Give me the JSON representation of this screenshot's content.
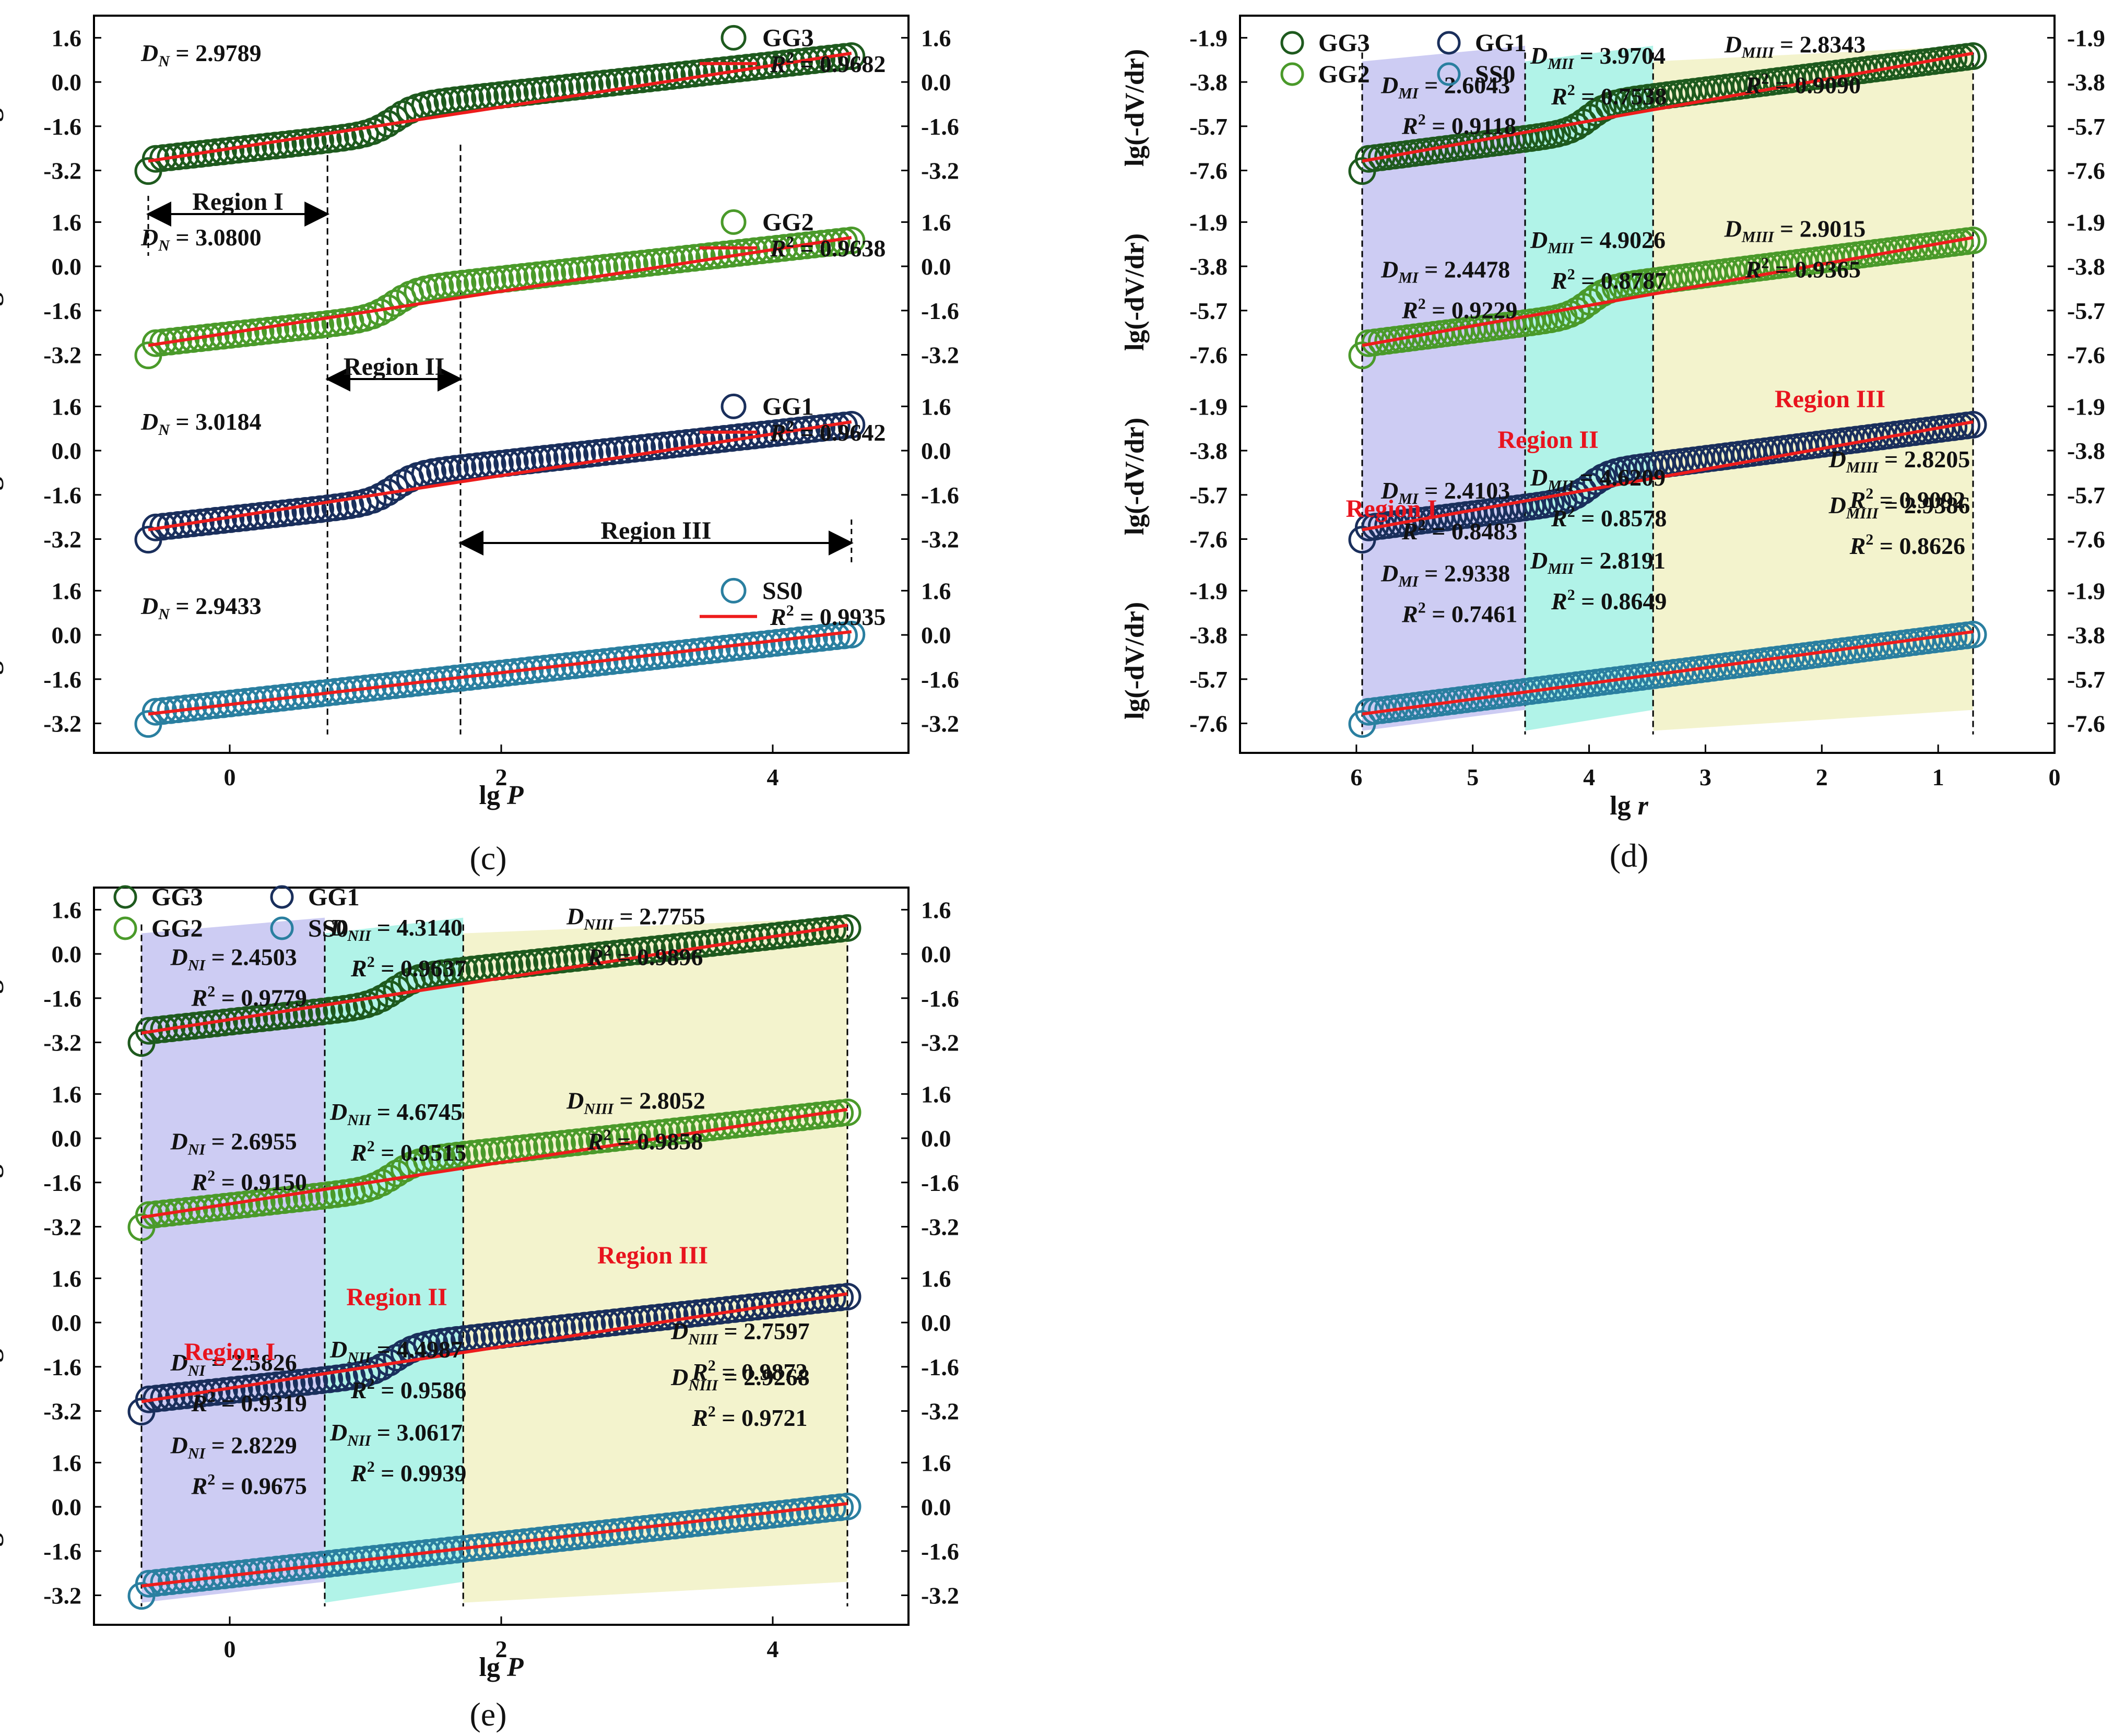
{
  "colors": {
    "GG3": "#1e5a1e",
    "GG2": "#4a9a2a",
    "GG1": "#1a2f5c",
    "SS0": "#2a7fa0",
    "fit": "#ee1c1c",
    "regionI": "#c8c6f2",
    "regionII": "#a8f2e6",
    "regionIII": "#f2f2c8",
    "regionLabel": "#e8141e"
  },
  "chart_data": [
    {
      "id": "c",
      "caption": "(c)",
      "type": "scatter",
      "xlabel": "lg P",
      "ylabel": "lg S",
      "xlim": [
        -1,
        5
      ],
      "xticks": [
        "0",
        "2",
        "4"
      ],
      "yticks": [
        "1.6",
        "0.0",
        "-1.6",
        "-3.2"
      ],
      "series": [
        {
          "name": "GG3",
          "fit_label": "R2 = 0.9682",
          "annotation": "D_N = 2.9789"
        },
        {
          "name": "GG2",
          "fit_label": "R2 = 0.9638",
          "annotation": "D_N = 3.0800"
        },
        {
          "name": "GG1",
          "fit_label": "R2 = 0.9642",
          "annotation": "D_N = 3.0184"
        },
        {
          "name": "SS0",
          "fit_label": "R2 = 0.9935",
          "annotation": "D_N = 2.9433"
        }
      ],
      "regions": [
        "Region I",
        "Region II",
        "Region III"
      ],
      "region_bounds_x": [
        -0.6,
        0.72,
        1.7,
        4.58
      ]
    },
    {
      "id": "d",
      "caption": "(d)",
      "type": "scatter",
      "xlabel": "lg r",
      "ylabel": "lg(-dV/dr)",
      "xlim": [
        7,
        0
      ],
      "xticks": [
        "6",
        "5",
        "4",
        "3",
        "2",
        "1",
        "0"
      ],
      "yticks": [
        "-1.9",
        "-3.8",
        "-5.7",
        "-7.6"
      ],
      "legend": [
        "GG3",
        "GG1",
        "GG2",
        "SS0"
      ],
      "regions": [
        "Region I",
        "Region II",
        "Region III"
      ],
      "region_bounds_x": [
        5.95,
        4.55,
        3.45,
        0.7
      ],
      "annotations": {
        "GG3": [
          "D_MI = 2.6043",
          "R2 = 0.9118",
          "D_MII = 3.9704",
          "R2 = 0.7538",
          "D_MIII = 2.8343",
          "R2 = 0.9090"
        ],
        "GG2": [
          "D_MI = 2.4478",
          "R2 = 0.9229",
          "D_MII = 4.9026",
          "R2 = 0.8787",
          "D_MIII = 2.9015",
          "R2 = 0.9365"
        ],
        "GG1": [
          "D_MI = 2.4103",
          "R2 = 0.8483",
          "D_MII = 4.6209",
          "R2 = 0.8578",
          "D_MIII = 2.8205",
          "R2 = 0.9092"
        ],
        "SS0": [
          "D_MI = 2.9338",
          "R2 = 0.7461",
          "D_MII = 2.8191",
          "R2 = 0.8649",
          "D_MIII = 2.9386",
          "R2 = 0.8626"
        ]
      }
    },
    {
      "id": "e",
      "caption": "(e)",
      "type": "scatter",
      "xlabel": "lg P",
      "ylabel": "lg S",
      "xlim": [
        -1,
        5
      ],
      "xticks": [
        "0",
        "2",
        "4"
      ],
      "yticks": [
        "1.6",
        "0.0",
        "-1.6",
        "-3.2"
      ],
      "legend": [
        "GG3",
        "GG1",
        "GG2",
        "SS0"
      ],
      "regions": [
        "Region I",
        "Region II",
        "Region III"
      ],
      "region_bounds_x": [
        -0.65,
        0.7,
        1.72,
        4.55
      ],
      "annotations": {
        "GG3": [
          "D_NI = 2.4503",
          "R2 = 0.9779",
          "D_NII = 4.3140",
          "R2 = 0.9637",
          "D_NIII = 2.7755",
          "R2 = 0.9896"
        ],
        "GG2": [
          "D_NI = 2.6955",
          "R2 = 0.9150",
          "D_NII = 4.6745",
          "R2 = 0.9515",
          "D_NIII = 2.8052",
          "R2 = 0.9858"
        ],
        "GG1": [
          "D_NI = 2.5826",
          "R2 = 0.9319",
          "D_NII = 4.4987",
          "R2 = 0.9586",
          "D_NIII = 2.7597",
          "R2 = 0.9872"
        ],
        "SS0": [
          "D_NI = 2.8229",
          "R2 = 0.9675",
          "D_NII = 3.0617",
          "R2 = 0.9939",
          "D_NIII = 2.9268",
          "R2 = 0.9721"
        ]
      }
    }
  ]
}
